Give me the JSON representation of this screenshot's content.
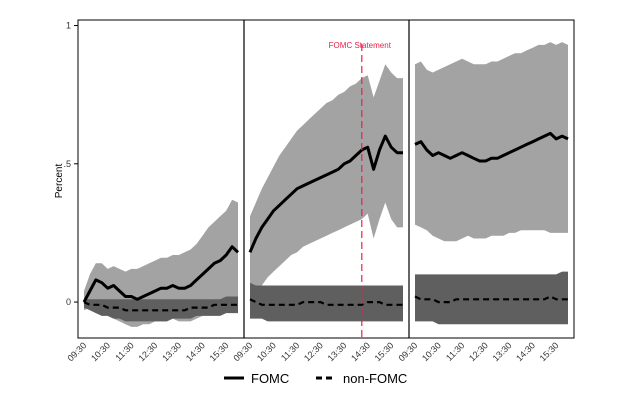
{
  "chart_data": {
    "type": "area",
    "ylabel": "Percent",
    "ylim": [
      -0.13,
      1.02
    ],
    "yticks": [
      {
        "value": 0,
        "label": "0"
      },
      {
        "value": 0.5,
        "label": ".5"
      },
      {
        "value": 1,
        "label": "1"
      }
    ],
    "x_tick_labels": [
      "09:30",
      "10:30",
      "11:30",
      "12:30",
      "13:30",
      "14:30",
      "15:30"
    ],
    "xlim": [
      9.5,
      16.0
    ],
    "grid": false,
    "legend_position": "bottom",
    "series": [
      {
        "name": "FOMC",
        "style": "solid"
      },
      {
        "name": "non-FOMC",
        "style": "dashed"
      }
    ],
    "annotation": {
      "label": "FOMC Statement",
      "x": 14.25
    },
    "panels": [
      {
        "x": [
          9.5,
          9.75,
          10.0,
          10.25,
          10.5,
          10.75,
          11.0,
          11.25,
          11.5,
          11.75,
          12.0,
          12.25,
          12.5,
          12.75,
          13.0,
          13.25,
          13.5,
          13.75,
          14.0,
          14.25,
          14.5,
          14.75,
          15.0,
          15.25,
          15.5,
          15.75,
          16.0
        ],
        "fomc": [
          0.0,
          0.04,
          0.08,
          0.07,
          0.05,
          0.06,
          0.04,
          0.02,
          0.02,
          0.01,
          0.02,
          0.03,
          0.04,
          0.05,
          0.05,
          0.06,
          0.05,
          0.05,
          0.06,
          0.08,
          0.1,
          0.12,
          0.14,
          0.15,
          0.17,
          0.2,
          0.18
        ],
        "fomc_upper": [
          0.04,
          0.1,
          0.14,
          0.14,
          0.12,
          0.13,
          0.12,
          0.11,
          0.12,
          0.12,
          0.13,
          0.14,
          0.15,
          0.16,
          0.16,
          0.17,
          0.17,
          0.18,
          0.19,
          0.21,
          0.24,
          0.27,
          0.29,
          0.31,
          0.33,
          0.37,
          0.36
        ],
        "fomc_lower": [
          -0.03,
          -0.02,
          -0.02,
          -0.03,
          -0.05,
          -0.06,
          -0.07,
          -0.08,
          -0.09,
          -0.09,
          -0.08,
          -0.08,
          -0.07,
          -0.07,
          -0.07,
          -0.06,
          -0.07,
          -0.07,
          -0.07,
          -0.06,
          -0.05,
          -0.04,
          -0.03,
          -0.02,
          -0.01,
          0.02,
          0.01
        ],
        "nonfomc": [
          0.0,
          -0.01,
          -0.01,
          -0.01,
          -0.02,
          -0.02,
          -0.02,
          -0.03,
          -0.03,
          -0.03,
          -0.03,
          -0.03,
          -0.03,
          -0.03,
          -0.03,
          -0.03,
          -0.03,
          -0.03,
          -0.02,
          -0.02,
          -0.02,
          -0.02,
          -0.01,
          -0.01,
          -0.01,
          -0.01,
          -0.01
        ],
        "nonfomc_upper": [
          0.01,
          0.01,
          0.01,
          0.01,
          0.01,
          0.01,
          0.01,
          0.01,
          0.01,
          0.01,
          0.01,
          0.01,
          0.01,
          0.01,
          0.01,
          0.01,
          0.01,
          0.01,
          0.01,
          0.01,
          0.01,
          0.01,
          0.01,
          0.01,
          0.02,
          0.02,
          0.02
        ],
        "nonfomc_lower": [
          -0.02,
          -0.03,
          -0.04,
          -0.05,
          -0.05,
          -0.06,
          -0.06,
          -0.07,
          -0.07,
          -0.07,
          -0.07,
          -0.07,
          -0.07,
          -0.07,
          -0.07,
          -0.06,
          -0.06,
          -0.06,
          -0.06,
          -0.05,
          -0.05,
          -0.05,
          -0.05,
          -0.05,
          -0.04,
          -0.04,
          -0.04
        ]
      },
      {
        "x": [
          9.5,
          9.75,
          10.0,
          10.25,
          10.5,
          10.75,
          11.0,
          11.25,
          11.5,
          11.75,
          12.0,
          12.25,
          12.5,
          12.75,
          13.0,
          13.25,
          13.5,
          13.75,
          14.0,
          14.25,
          14.5,
          14.75,
          15.0,
          15.25,
          15.5,
          15.75,
          16.0
        ],
        "fomc": [
          0.18,
          0.23,
          0.27,
          0.3,
          0.33,
          0.35,
          0.37,
          0.39,
          0.41,
          0.42,
          0.43,
          0.44,
          0.45,
          0.46,
          0.47,
          0.48,
          0.5,
          0.51,
          0.53,
          0.55,
          0.56,
          0.48,
          0.55,
          0.6,
          0.56,
          0.54,
          0.54
        ],
        "fomc_upper": [
          0.31,
          0.36,
          0.41,
          0.45,
          0.49,
          0.53,
          0.56,
          0.59,
          0.62,
          0.64,
          0.66,
          0.68,
          0.7,
          0.72,
          0.73,
          0.75,
          0.76,
          0.78,
          0.79,
          0.81,
          0.82,
          0.74,
          0.8,
          0.86,
          0.83,
          0.81,
          0.81
        ],
        "fomc_lower": [
          0.01,
          0.03,
          0.06,
          0.09,
          0.11,
          0.13,
          0.15,
          0.17,
          0.18,
          0.2,
          0.21,
          0.22,
          0.23,
          0.24,
          0.25,
          0.26,
          0.27,
          0.28,
          0.29,
          0.3,
          0.32,
          0.23,
          0.3,
          0.36,
          0.3,
          0.27,
          0.27
        ],
        "nonfomc": [
          0.01,
          0.0,
          -0.01,
          -0.01,
          -0.01,
          -0.01,
          -0.01,
          -0.01,
          -0.01,
          0.0,
          0.0,
          0.0,
          0.0,
          -0.01,
          -0.01,
          -0.01,
          -0.01,
          -0.01,
          -0.01,
          -0.01,
          0.0,
          0.0,
          0.0,
          -0.01,
          -0.01,
          -0.01,
          -0.01
        ],
        "nonfomc_upper": [
          0.07,
          0.06,
          0.06,
          0.06,
          0.06,
          0.06,
          0.06,
          0.06,
          0.06,
          0.06,
          0.06,
          0.06,
          0.06,
          0.06,
          0.06,
          0.06,
          0.06,
          0.06,
          0.06,
          0.06,
          0.06,
          0.06,
          0.06,
          0.06,
          0.06,
          0.06,
          0.06
        ],
        "nonfomc_lower": [
          -0.06,
          -0.06,
          -0.06,
          -0.07,
          -0.07,
          -0.07,
          -0.07,
          -0.07,
          -0.07,
          -0.07,
          -0.07,
          -0.07,
          -0.07,
          -0.07,
          -0.07,
          -0.07,
          -0.07,
          -0.07,
          -0.07,
          -0.07,
          -0.07,
          -0.07,
          -0.07,
          -0.07,
          -0.07,
          -0.07,
          -0.07
        ]
      },
      {
        "x": [
          9.5,
          9.75,
          10.0,
          10.25,
          10.5,
          10.75,
          11.0,
          11.25,
          11.5,
          11.75,
          12.0,
          12.25,
          12.5,
          12.75,
          13.0,
          13.25,
          13.5,
          13.75,
          14.0,
          14.25,
          14.5,
          14.75,
          15.0,
          15.25,
          15.5,
          15.75,
          16.0
        ],
        "fomc": [
          0.57,
          0.58,
          0.55,
          0.53,
          0.54,
          0.53,
          0.52,
          0.53,
          0.54,
          0.53,
          0.52,
          0.51,
          0.51,
          0.52,
          0.52,
          0.53,
          0.54,
          0.55,
          0.56,
          0.57,
          0.58,
          0.59,
          0.6,
          0.61,
          0.59,
          0.6,
          0.59
        ],
        "fomc_upper": [
          0.86,
          0.87,
          0.84,
          0.83,
          0.84,
          0.85,
          0.86,
          0.87,
          0.88,
          0.87,
          0.86,
          0.86,
          0.86,
          0.87,
          0.87,
          0.88,
          0.89,
          0.9,
          0.9,
          0.91,
          0.92,
          0.93,
          0.93,
          0.94,
          0.93,
          0.94,
          0.93
        ],
        "fomc_lower": [
          0.28,
          0.27,
          0.26,
          0.24,
          0.23,
          0.22,
          0.22,
          0.22,
          0.23,
          0.24,
          0.23,
          0.23,
          0.23,
          0.24,
          0.24,
          0.24,
          0.25,
          0.25,
          0.26,
          0.26,
          0.26,
          0.26,
          0.26,
          0.25,
          0.25,
          0.25,
          0.25
        ],
        "nonfomc": [
          0.02,
          0.01,
          0.01,
          0.01,
          0.0,
          0.0,
          0.0,
          0.01,
          0.01,
          0.01,
          0.01,
          0.01,
          0.01,
          0.01,
          0.01,
          0.01,
          0.01,
          0.01,
          0.01,
          0.01,
          0.01,
          0.01,
          0.01,
          0.02,
          0.01,
          0.01,
          0.01
        ],
        "nonfomc_upper": [
          0.1,
          0.1,
          0.1,
          0.1,
          0.1,
          0.1,
          0.1,
          0.1,
          0.1,
          0.1,
          0.1,
          0.1,
          0.1,
          0.1,
          0.1,
          0.1,
          0.1,
          0.1,
          0.1,
          0.1,
          0.1,
          0.1,
          0.1,
          0.1,
          0.1,
          0.11,
          0.11
        ],
        "nonfomc_lower": [
          -0.07,
          -0.07,
          -0.07,
          -0.07,
          -0.08,
          -0.08,
          -0.08,
          -0.08,
          -0.08,
          -0.08,
          -0.08,
          -0.08,
          -0.08,
          -0.08,
          -0.08,
          -0.08,
          -0.08,
          -0.08,
          -0.08,
          -0.08,
          -0.08,
          -0.08,
          -0.08,
          -0.08,
          -0.08,
          -0.08,
          -0.08
        ]
      }
    ]
  },
  "colors": {
    "fomc_band": "#a3a3a3",
    "nonfomc_band": "#5f5f5f",
    "line": "#000000",
    "annotation": "#e8204a",
    "axis": "#000000"
  }
}
